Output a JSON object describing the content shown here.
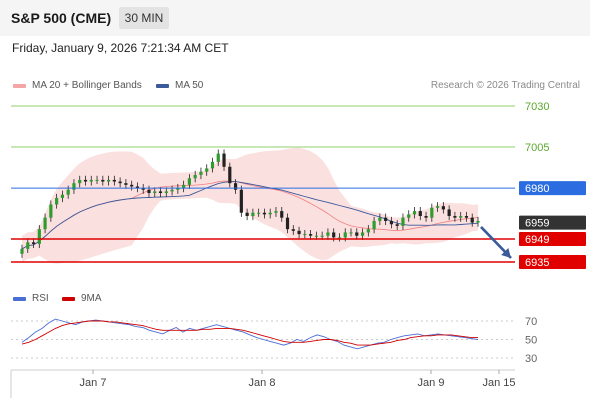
{
  "header": {
    "title": "S&P 500 (CME)",
    "timeframe": "30 MIN"
  },
  "datetime": "Friday, January 9, 2026 7:21:34 AM CET",
  "legend": {
    "bollinger": "MA 20 + Bollinger Bands",
    "ma50": "MA 50",
    "rsi": "RSI",
    "rsi_ma": "9MA"
  },
  "research": "Research © 2026 Trading Central",
  "colors": {
    "bollinger": "#f4a6a6",
    "ma50": "#3a5a9a",
    "resistance_green": "#8fd16a",
    "blue_level": "#2b6de0",
    "red_level": "#e00000",
    "current": "#333333",
    "rsi_line": "#4a6fd4",
    "rsi_ma_line": "#d00000"
  },
  "chart_data": {
    "type": "candlestick",
    "ylim": [
      6920,
      7040
    ],
    "x_ticks": [
      "Jan 7",
      "Jan 8",
      "Jan 9",
      "Jan 15"
    ],
    "levels": [
      {
        "value": "7030",
        "style": "green"
      },
      {
        "value": "7005",
        "style": "green"
      },
      {
        "value": "6980",
        "style": "blue"
      },
      {
        "value": "6959",
        "style": "current"
      },
      {
        "value": "6949",
        "style": "red"
      },
      {
        "value": "6935",
        "style": "red"
      }
    ],
    "close_series": [
      6943,
      6947,
      6946,
      6955,
      6962,
      6970,
      6974,
      6976,
      6979,
      6983,
      6985,
      6984,
      6985,
      6985,
      6984,
      6985,
      6984,
      6983,
      6982,
      6981,
      6980,
      6979,
      6977,
      6978,
      6977,
      6978,
      6979,
      6980,
      6982,
      6986,
      6988,
      6990,
      6992,
      6996,
      7001,
      6993,
      6983,
      6979,
      6965,
      6963,
      6965,
      6965,
      6964,
      6965,
      6966,
      6962,
      6955,
      6954,
      6952,
      6952,
      6951,
      6951,
      6951,
      6953,
      6950,
      6950,
      6953,
      6953,
      6951,
      6953,
      6955,
      6960,
      6962,
      6960,
      6958,
      6957,
      6962,
      6964,
      6966,
      6963,
      6962,
      6968,
      6969,
      6967,
      6963,
      6962,
      6963,
      6962,
      6959,
      6960
    ],
    "rsi": {
      "levels": [
        "70",
        "50",
        "30"
      ],
      "ylim": [
        20,
        80
      ],
      "rsi_series": [
        47,
        52,
        58,
        62,
        68,
        72,
        70,
        68,
        66,
        69,
        70,
        71,
        70,
        69,
        68,
        67,
        66,
        64,
        63,
        60,
        58,
        56,
        60,
        63,
        58,
        62,
        60,
        62,
        64,
        66,
        64,
        62,
        60,
        58,
        55,
        52,
        50,
        48,
        46,
        44,
        46,
        50,
        48,
        52,
        55,
        53,
        50,
        48,
        44,
        42,
        40,
        42,
        44,
        46,
        47,
        50,
        52,
        54,
        55,
        56,
        54,
        55,
        56,
        55,
        54,
        53,
        52,
        51,
        50
      ],
      "rsi_ma_series": [
        45,
        47,
        50,
        54,
        58,
        62,
        65,
        67,
        68,
        69,
        70,
        70,
        70,
        69,
        69,
        68,
        67,
        66,
        65,
        63,
        61,
        60,
        60,
        60,
        60,
        60,
        60,
        61,
        61,
        62,
        62,
        62,
        61,
        60,
        58,
        56,
        54,
        52,
        50,
        48,
        47,
        47,
        47,
        48,
        49,
        50,
        50,
        49,
        47,
        46,
        44,
        44,
        44,
        45,
        46,
        47,
        49,
        50,
        52,
        53,
        54,
        54,
        55,
        55,
        55,
        54,
        53,
        52,
        52
      ]
    }
  }
}
